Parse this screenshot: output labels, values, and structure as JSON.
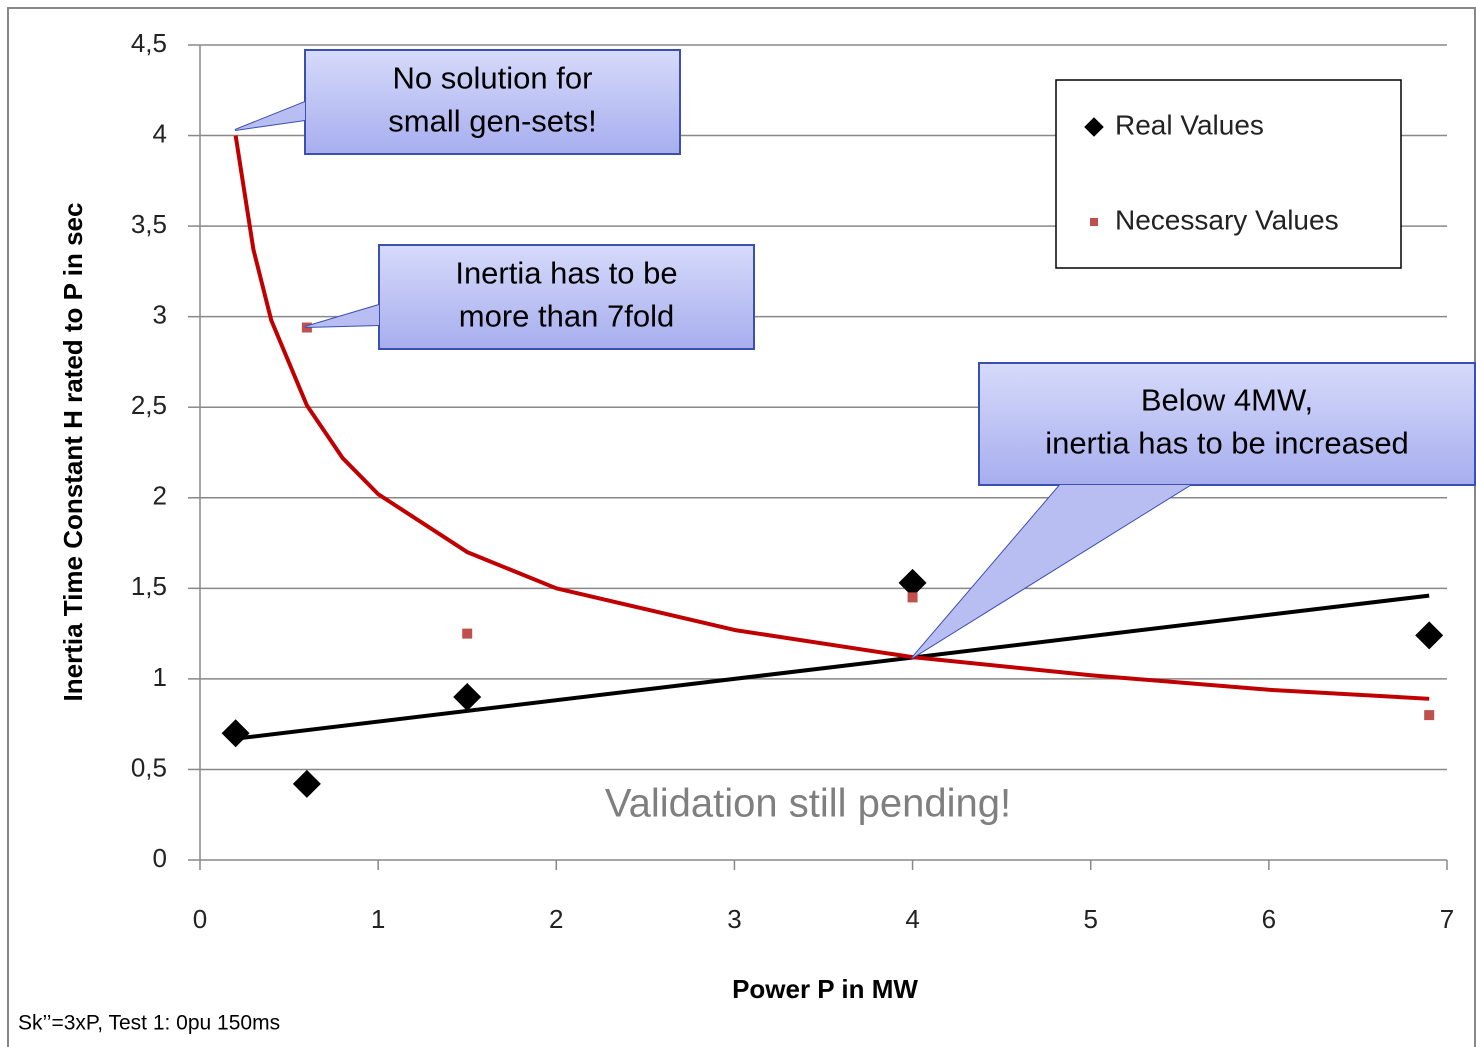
{
  "chart_data": {
    "type": "scatter",
    "xlabel": "Power P in MW",
    "ylabel": "Inertia Time Constant H rated to P in sec",
    "xlim": [
      0,
      7
    ],
    "ylim": [
      0,
      4.5
    ],
    "xticks": [
      0,
      1,
      2,
      3,
      4,
      5,
      6,
      7
    ],
    "yticks": [
      0,
      {
        "value": 0.5,
        "label": "0,5"
      },
      1,
      {
        "value": 1.5,
        "label": "1,5"
      },
      2,
      {
        "value": 2.5,
        "label": "2,5"
      },
      3,
      {
        "value": 3.5,
        "label": "3,5"
      },
      4,
      {
        "value": 4.5,
        "label": "4,5"
      }
    ],
    "grid": true,
    "legend": "top-right",
    "series": [
      {
        "name": "Real Values",
        "color": "#000000",
        "marker": "diamond",
        "x": [
          0.2,
          0.6,
          1.5,
          4,
          6.9
        ],
        "values": [
          0.7,
          0.42,
          0.9,
          1.53,
          1.24
        ]
      },
      {
        "name": "Necessary Values",
        "color": "#c0504d",
        "marker": "square",
        "x": [
          0.6,
          1.5,
          4,
          6.9
        ],
        "values": [
          2.94,
          1.25,
          1.45,
          0.8
        ]
      }
    ],
    "trendlines": [
      {
        "color": "#000000",
        "x": [
          0.2,
          6.9
        ],
        "values": [
          0.67,
          1.46
        ]
      },
      {
        "color": "#c00000",
        "x": [
          0.2,
          0.3,
          0.4,
          0.6,
          0.8,
          1,
          1.5,
          2,
          3,
          4,
          5,
          6,
          6.9
        ],
        "values": [
          4.0,
          3.37,
          2.98,
          2.51,
          2.22,
          2.02,
          1.7,
          1.5,
          1.27,
          1.12,
          1.02,
          0.94,
          0.89
        ]
      }
    ],
    "annotations": [
      [
        "No solution for",
        "small gen-sets!"
      ],
      [
        "Inertia has to be",
        "more than 7fold"
      ],
      [
        "Below 4MW,",
        "inertia has to be increased"
      ]
    ],
    "note": "Validation still pending!",
    "footnote": "Sk’’=3xP, Test 1: 0pu 150ms"
  }
}
